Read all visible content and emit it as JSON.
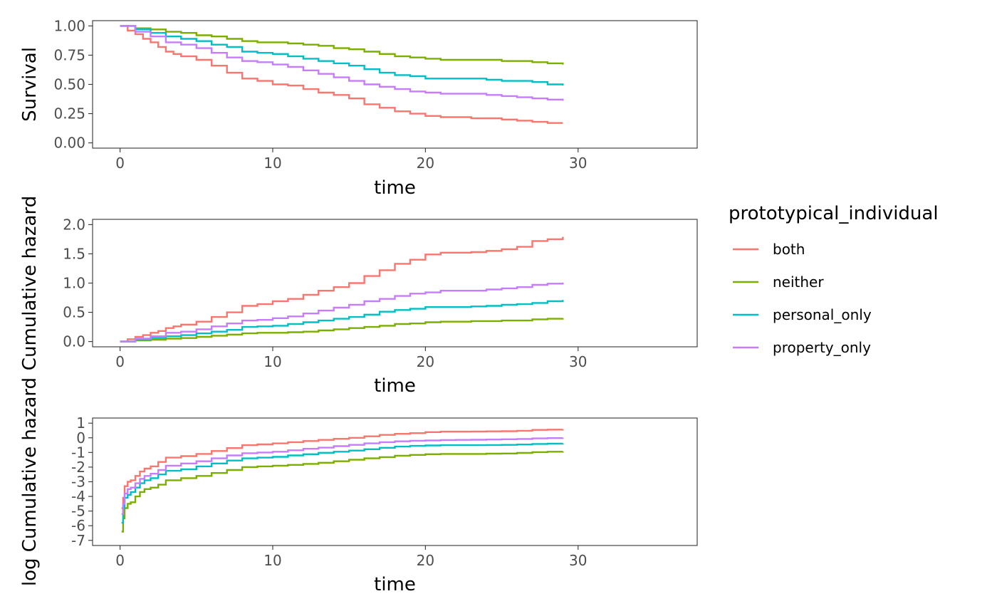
{
  "legend": {
    "title": "prototypical_individual",
    "placement": "right",
    "entries": [
      {
        "name": "both",
        "color": "#F8766D"
      },
      {
        "name": "neither",
        "color": "#7CAE00"
      },
      {
        "name": "personal_only",
        "color": "#00BFC4"
      },
      {
        "name": "property_only",
        "color": "#C77CFF"
      }
    ]
  },
  "chart_data": [
    {
      "type": "line",
      "step": true,
      "xlabel": "time",
      "ylabel": "Survival",
      "xlim": [
        -1.8,
        37.8
      ],
      "ylim": [
        -0.045,
        1.045
      ],
      "xticks": [
        0,
        10,
        20,
        30
      ],
      "xtick_labels": [
        "0",
        "10",
        "20",
        "30"
      ],
      "yticks": [
        0,
        0.25,
        0.5,
        0.75,
        1
      ],
      "ytick_labels": [
        "0.00",
        "0.25",
        "0.50",
        "0.75",
        "1.00"
      ],
      "grid": false,
      "series": [
        {
          "name": "both",
          "color": "#F8766D",
          "x": [
            0,
            0.5,
            1,
            1.5,
            2,
            2.5,
            3,
            3.5,
            4,
            5,
            6,
            7,
            8,
            9,
            10,
            11,
            12,
            13,
            14,
            15,
            16,
            17,
            18,
            19,
            20,
            21,
            22,
            23,
            24,
            25,
            26,
            27,
            28,
            29
          ],
          "y": [
            1.0,
            0.96,
            0.93,
            0.89,
            0.86,
            0.82,
            0.78,
            0.76,
            0.74,
            0.71,
            0.66,
            0.6,
            0.55,
            0.53,
            0.5,
            0.49,
            0.46,
            0.43,
            0.41,
            0.38,
            0.33,
            0.3,
            0.27,
            0.25,
            0.23,
            0.22,
            0.22,
            0.21,
            0.21,
            0.2,
            0.19,
            0.18,
            0.17,
            0.17
          ]
        },
        {
          "name": "neither",
          "color": "#7CAE00",
          "x": [
            0,
            1,
            2,
            3,
            4,
            5,
            6,
            7,
            8,
            9,
            10,
            11,
            12,
            13,
            14,
            15,
            16,
            17,
            18,
            19,
            20,
            21,
            22,
            23,
            24,
            25,
            26,
            27,
            28,
            29
          ],
          "y": [
            1.0,
            0.98,
            0.97,
            0.95,
            0.94,
            0.92,
            0.91,
            0.89,
            0.87,
            0.86,
            0.86,
            0.85,
            0.84,
            0.83,
            0.81,
            0.8,
            0.78,
            0.76,
            0.74,
            0.73,
            0.72,
            0.71,
            0.71,
            0.71,
            0.71,
            0.7,
            0.7,
            0.69,
            0.68,
            0.67
          ]
        },
        {
          "name": "personal_only",
          "color": "#00BFC4",
          "x": [
            0,
            1,
            2,
            3,
            4,
            5,
            6,
            7,
            8,
            9,
            10,
            11,
            12,
            13,
            14,
            15,
            16,
            17,
            18,
            19,
            20,
            21,
            22,
            23,
            24,
            25,
            26,
            27,
            28,
            29
          ],
          "y": [
            1.0,
            0.97,
            0.94,
            0.91,
            0.89,
            0.87,
            0.84,
            0.82,
            0.78,
            0.77,
            0.76,
            0.74,
            0.72,
            0.7,
            0.68,
            0.66,
            0.63,
            0.6,
            0.58,
            0.57,
            0.55,
            0.55,
            0.55,
            0.55,
            0.54,
            0.53,
            0.53,
            0.52,
            0.5,
            0.49
          ]
        },
        {
          "name": "property_only",
          "color": "#C77CFF",
          "x": [
            0,
            1,
            2,
            3,
            4,
            5,
            6,
            7,
            8,
            9,
            10,
            11,
            12,
            13,
            14,
            15,
            16,
            17,
            18,
            19,
            20,
            21,
            22,
            23,
            24,
            25,
            26,
            27,
            28,
            29
          ],
          "y": [
            1.0,
            0.95,
            0.91,
            0.86,
            0.84,
            0.81,
            0.77,
            0.73,
            0.7,
            0.69,
            0.67,
            0.65,
            0.62,
            0.59,
            0.56,
            0.53,
            0.5,
            0.48,
            0.46,
            0.44,
            0.43,
            0.42,
            0.42,
            0.42,
            0.41,
            0.4,
            0.39,
            0.38,
            0.37,
            0.36
          ]
        }
      ]
    },
    {
      "type": "line",
      "step": true,
      "xlabel": "time",
      "ylabel": "Cumulative hazard",
      "xlim": [
        -1.8,
        37.8
      ],
      "ylim": [
        -0.09,
        2.09
      ],
      "xticks": [
        0,
        10,
        20,
        30
      ],
      "xtick_labels": [
        "0",
        "10",
        "20",
        "30"
      ],
      "yticks": [
        0,
        0.5,
        1,
        1.5,
        2
      ],
      "ytick_labels": [
        "0.0",
        "0.5",
        "1.0",
        "1.5",
        "2.0"
      ],
      "grid": false,
      "series": [
        {
          "name": "both",
          "color": "#F8766D",
          "x": [
            0,
            0.5,
            1,
            1.5,
            2,
            2.5,
            3,
            3.5,
            4,
            5,
            6,
            7,
            8,
            9,
            10,
            11,
            12,
            13,
            14,
            15,
            16,
            17,
            18,
            19,
            20,
            21,
            22,
            23,
            24,
            25,
            26,
            27,
            28,
            29
          ],
          "y": [
            0,
            0.04,
            0.08,
            0.11,
            0.15,
            0.18,
            0.23,
            0.26,
            0.29,
            0.34,
            0.42,
            0.5,
            0.61,
            0.64,
            0.69,
            0.73,
            0.8,
            0.87,
            0.93,
            1.0,
            1.12,
            1.22,
            1.33,
            1.4,
            1.49,
            1.52,
            1.52,
            1.53,
            1.55,
            1.58,
            1.62,
            1.72,
            1.75,
            1.79
          ]
        },
        {
          "name": "neither",
          "color": "#7CAE00",
          "x": [
            0,
            1,
            2,
            3,
            4,
            5,
            6,
            7,
            8,
            9,
            10,
            11,
            12,
            13,
            14,
            15,
            16,
            17,
            18,
            19,
            20,
            21,
            22,
            23,
            24,
            25,
            26,
            27,
            28,
            29
          ],
          "y": [
            0,
            0.02,
            0.03,
            0.05,
            0.06,
            0.08,
            0.1,
            0.12,
            0.14,
            0.15,
            0.15,
            0.16,
            0.17,
            0.19,
            0.21,
            0.23,
            0.25,
            0.27,
            0.3,
            0.31,
            0.33,
            0.34,
            0.34,
            0.35,
            0.35,
            0.36,
            0.36,
            0.38,
            0.39,
            0.4
          ]
        },
        {
          "name": "personal_only",
          "color": "#00BFC4",
          "x": [
            0,
            1,
            2,
            3,
            4,
            5,
            6,
            7,
            8,
            9,
            10,
            11,
            12,
            13,
            14,
            15,
            16,
            17,
            18,
            19,
            20,
            21,
            22,
            23,
            24,
            25,
            26,
            27,
            28,
            29
          ],
          "y": [
            0,
            0.03,
            0.06,
            0.09,
            0.11,
            0.14,
            0.17,
            0.2,
            0.25,
            0.26,
            0.27,
            0.3,
            0.33,
            0.36,
            0.39,
            0.42,
            0.46,
            0.51,
            0.54,
            0.56,
            0.59,
            0.59,
            0.59,
            0.6,
            0.61,
            0.63,
            0.64,
            0.66,
            0.69,
            0.71
          ]
        },
        {
          "name": "property_only",
          "color": "#C77CFF",
          "x": [
            0,
            1,
            2,
            3,
            4,
            5,
            6,
            7,
            8,
            9,
            10,
            11,
            12,
            13,
            14,
            15,
            16,
            17,
            18,
            19,
            20,
            21,
            22,
            23,
            24,
            25,
            26,
            27,
            28,
            29
          ],
          "y": [
            0,
            0.05,
            0.09,
            0.15,
            0.17,
            0.21,
            0.26,
            0.31,
            0.36,
            0.37,
            0.4,
            0.43,
            0.48,
            0.53,
            0.58,
            0.63,
            0.69,
            0.73,
            0.78,
            0.82,
            0.84,
            0.87,
            0.87,
            0.87,
            0.89,
            0.91,
            0.93,
            0.97,
            0.99,
            1.01
          ]
        }
      ]
    },
    {
      "type": "line",
      "step": true,
      "xlabel": "time",
      "ylabel": "log Cumulative hazard",
      "xlim": [
        -1.8,
        37.8
      ],
      "ylim": [
        -7.35,
        1.35
      ],
      "xticks": [
        0,
        10,
        20,
        30
      ],
      "xtick_labels": [
        "0",
        "10",
        "20",
        "30"
      ],
      "yticks": [
        -7,
        -6,
        -5,
        -4,
        -3,
        -2,
        -1,
        0,
        1
      ],
      "ytick_labels": [
        "-7",
        "-6",
        "-5",
        "-4",
        "-3",
        "-2",
        "-1",
        "0",
        "1"
      ],
      "grid": false,
      "series": [
        {
          "name": "both",
          "color": "#F8766D",
          "x": [
            0.1,
            0.2,
            0.3,
            0.5,
            0.7,
            1,
            1.3,
            1.6,
            2,
            2.5,
            3,
            4,
            5,
            6,
            7,
            8,
            9,
            10,
            11,
            12,
            13,
            14,
            15,
            16,
            17,
            18,
            19,
            20,
            21,
            22,
            23,
            24,
            25,
            26,
            27,
            28,
            29
          ],
          "y": [
            -4.8,
            -4.1,
            -3.3,
            -3.0,
            -2.9,
            -2.6,
            -2.3,
            -2.1,
            -1.95,
            -1.65,
            -1.35,
            -1.25,
            -1.1,
            -0.9,
            -0.7,
            -0.5,
            -0.45,
            -0.38,
            -0.3,
            -0.22,
            -0.14,
            -0.07,
            0.0,
            0.1,
            0.2,
            0.27,
            0.32,
            0.39,
            0.42,
            0.42,
            0.43,
            0.44,
            0.45,
            0.48,
            0.54,
            0.56,
            0.58
          ]
        },
        {
          "name": "neither",
          "color": "#7CAE00",
          "x": [
            0.1,
            0.2,
            0.3,
            0.5,
            0.7,
            1,
            1.3,
            1.6,
            2,
            2.5,
            3,
            4,
            5,
            6,
            7,
            8,
            9,
            10,
            11,
            12,
            13,
            14,
            15,
            16,
            17,
            18,
            19,
            20,
            21,
            22,
            23,
            24,
            25,
            26,
            27,
            28,
            29
          ],
          "y": [
            -6.4,
            -5.5,
            -4.8,
            -4.5,
            -4.4,
            -4.0,
            -3.7,
            -3.5,
            -3.4,
            -3.2,
            -2.9,
            -2.75,
            -2.6,
            -2.4,
            -2.2,
            -2.0,
            -1.95,
            -1.9,
            -1.85,
            -1.78,
            -1.7,
            -1.6,
            -1.5,
            -1.4,
            -1.32,
            -1.22,
            -1.17,
            -1.12,
            -1.1,
            -1.1,
            -1.1,
            -1.08,
            -1.07,
            -1.03,
            -0.98,
            -0.95,
            -0.92
          ]
        },
        {
          "name": "personal_only",
          "color": "#00BFC4",
          "x": [
            0.1,
            0.2,
            0.3,
            0.5,
            0.7,
            1,
            1.3,
            1.6,
            2,
            2.5,
            3,
            4,
            5,
            6,
            7,
            8,
            9,
            10,
            11,
            12,
            13,
            14,
            15,
            16,
            17,
            18,
            19,
            20,
            21,
            22,
            23,
            24,
            25,
            26,
            27,
            28,
            29
          ],
          "y": [
            -5.8,
            -4.8,
            -4.1,
            -3.9,
            -3.7,
            -3.4,
            -3.1,
            -2.9,
            -2.75,
            -2.5,
            -2.25,
            -2.15,
            -1.95,
            -1.75,
            -1.55,
            -1.4,
            -1.35,
            -1.3,
            -1.2,
            -1.12,
            -1.02,
            -0.95,
            -0.87,
            -0.78,
            -0.68,
            -0.6,
            -0.55,
            -0.52,
            -0.5,
            -0.5,
            -0.5,
            -0.49,
            -0.48,
            -0.46,
            -0.42,
            -0.4,
            -0.38
          ]
        },
        {
          "name": "property_only",
          "color": "#C77CFF",
          "x": [
            0.1,
            0.2,
            0.3,
            0.5,
            0.7,
            1,
            1.3,
            1.6,
            2,
            2.5,
            3,
            4,
            5,
            6,
            7,
            8,
            9,
            10,
            11,
            12,
            13,
            14,
            15,
            16,
            17,
            18,
            19,
            20,
            21,
            22,
            23,
            24,
            25,
            26,
            27,
            28,
            29
          ],
          "y": [
            -5.2,
            -4.5,
            -3.8,
            -3.5,
            -3.4,
            -3.1,
            -2.8,
            -2.6,
            -2.45,
            -2.2,
            -1.9,
            -1.75,
            -1.6,
            -1.4,
            -1.2,
            -1.05,
            -1.0,
            -0.95,
            -0.85,
            -0.75,
            -0.67,
            -0.57,
            -0.48,
            -0.38,
            -0.3,
            -0.24,
            -0.2,
            -0.18,
            -0.15,
            -0.14,
            -0.13,
            -0.12,
            -0.1,
            -0.08,
            -0.04,
            -0.02,
            0.0
          ]
        }
      ]
    }
  ]
}
